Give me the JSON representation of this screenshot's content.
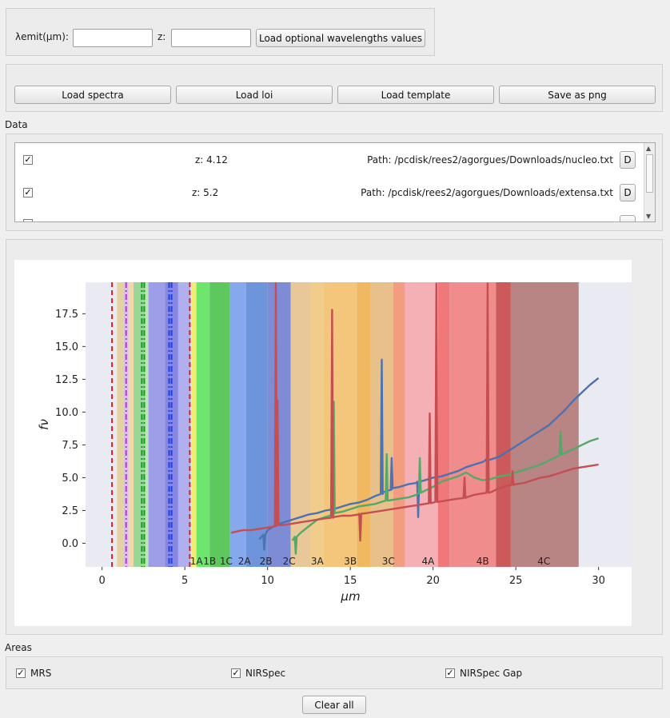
{
  "params": {
    "lambda_label": "λemit(µm):",
    "lambda_value": "",
    "z_label": "z:",
    "z_value": "",
    "load_optional_label": "Load optional wavelengths values"
  },
  "toolbar": {
    "load_spectra": "Load spectra",
    "load_loi": "Load loi",
    "load_template": "Load template",
    "save_png": "Save as png"
  },
  "data_section": {
    "title": "Data",
    "rows": [
      {
        "checked": true,
        "z": "z: 4.12",
        "path": "Path: /pcdisk/rees2/agorgues/Downloads/nucleo.txt",
        "button": "D"
      },
      {
        "checked": true,
        "z": "z: 5.2",
        "path": "Path: /pcdisk/rees2/agorgues/Downloads/extensa.txt",
        "button": "D"
      }
    ]
  },
  "areas": {
    "title": "Areas",
    "items": [
      {
        "label": "MRS",
        "checked": true
      },
      {
        "label": "NIRSpec",
        "checked": true
      },
      {
        "label": "NIRSpec Gap",
        "checked": true
      }
    ]
  },
  "clear_all": "Clear all",
  "chart_data": {
    "type": "line",
    "xlabel": "μm",
    "ylabel": "fν",
    "xlim": [
      -1,
      32
    ],
    "ylim": [
      -1.8,
      19.9
    ],
    "xticks": [
      0,
      5,
      10,
      15,
      20,
      25,
      30
    ],
    "yticks": [
      0.0,
      2.5,
      5.0,
      7.5,
      10.0,
      12.5,
      15.0,
      17.5
    ],
    "grid": false,
    "band_labels": [
      {
        "label": "1A",
        "x": 5.7
      },
      {
        "label": "1B",
        "x": 6.5
      },
      {
        "label": "1C",
        "x": 7.5
      },
      {
        "label": "2A",
        "x": 8.6
      },
      {
        "label": "2B",
        "x": 9.9
      },
      {
        "label": "2C",
        "x": 11.3
      },
      {
        "label": "3A",
        "x": 13.0
      },
      {
        "label": "3B",
        "x": 15.0
      },
      {
        "label": "3C",
        "x": 17.3
      },
      {
        "label": "4A",
        "x": 19.7
      },
      {
        "label": "4B",
        "x": 23.0
      },
      {
        "label": "4C",
        "x": 26.7
      }
    ],
    "bands": [
      {
        "x0": 0.9,
        "x1": 1.3,
        "color": "#e4d3a0"
      },
      {
        "x0": 1.3,
        "x1": 1.6,
        "color": "#d6c2e6"
      },
      {
        "x0": 1.6,
        "x1": 1.9,
        "color": "#f1d8a8"
      },
      {
        "x0": 1.9,
        "x1": 2.6,
        "color": "#9ad69a"
      },
      {
        "x0": 2.6,
        "x1": 2.8,
        "color": "#bce4bc"
      },
      {
        "x0": 2.8,
        "x1": 3.8,
        "color": "#9e9ee8"
      },
      {
        "x0": 3.8,
        "x1": 4.6,
        "color": "#8686e3"
      },
      {
        "x0": 4.6,
        "x1": 5.35,
        "color": "#b0b0ee"
      },
      {
        "x0": 5.4,
        "x1": 5.7,
        "color": "#f0ee70"
      },
      {
        "x0": 5.7,
        "x1": 6.5,
        "color": "#6ee66e"
      },
      {
        "x0": 6.5,
        "x1": 7.7,
        "color": "#5ec85e"
      },
      {
        "x0": 7.7,
        "x1": 8.7,
        "color": "#86a8ec"
      },
      {
        "x0": 8.7,
        "x1": 10.0,
        "color": "#6e94dc"
      },
      {
        "x0": 10.0,
        "x1": 11.4,
        "color": "#7e8cd6"
      },
      {
        "x0": 11.4,
        "x1": 12.6,
        "color": "#e8c898"
      },
      {
        "x0": 12.6,
        "x1": 13.4,
        "color": "#f2cc8a"
      },
      {
        "x0": 13.4,
        "x1": 15.4,
        "color": "#f4c67c"
      },
      {
        "x0": 15.4,
        "x1": 16.2,
        "color": "#f0b860"
      },
      {
        "x0": 16.2,
        "x1": 17.6,
        "color": "#e8c08a"
      },
      {
        "x0": 17.6,
        "x1": 18.3,
        "color": "#f29c80"
      },
      {
        "x0": 18.3,
        "x1": 20.3,
        "color": "#f4b0b4"
      },
      {
        "x0": 20.3,
        "x1": 21.0,
        "color": "#f07878"
      },
      {
        "x0": 21.0,
        "x1": 23.8,
        "color": "#f08c8c"
      },
      {
        "x0": 23.8,
        "x1": 24.7,
        "color": "#cc5a5a"
      },
      {
        "x0": 24.7,
        "x1": 28.8,
        "color": "#b98484"
      }
    ],
    "vlines": [
      {
        "x": 0.6,
        "color": "#d42020",
        "style": "dashed"
      },
      {
        "x": 1.45,
        "color": "#c030e0",
        "style": "dashdot"
      },
      {
        "x": 2.4,
        "color": "#10a010",
        "style": "dashdot"
      },
      {
        "x": 2.55,
        "color": "#10a010",
        "style": "dashdot"
      },
      {
        "x": 4.05,
        "color": "#2040e0",
        "style": "dashdot"
      },
      {
        "x": 4.2,
        "color": "#2040e0",
        "style": "dashdot"
      },
      {
        "x": 5.3,
        "color": "#d42020",
        "style": "dashed"
      }
    ],
    "series": [
      {
        "color": "#4c72b0",
        "x": [
          9.5,
          10.0,
          10.5,
          11.0,
          11.5,
          12.0,
          12.5,
          13.0,
          13.5,
          14.0,
          14.5,
          15.0,
          15.5,
          16.0,
          16.5,
          17.0,
          17.5,
          18.0,
          18.5,
          19.0,
          19.5,
          20.0,
          20.5,
          21.0,
          21.5,
          22.0,
          22.5,
          23.0,
          23.5,
          24.0,
          24.5,
          25.0,
          25.5,
          26.0,
          26.5,
          27.0,
          27.5,
          28.0,
          28.5,
          29.0,
          29.5,
          30.0
        ],
        "y": [
          0.3,
          1.0,
          1.4,
          1.6,
          1.8,
          2.0,
          2.2,
          2.3,
          2.5,
          2.6,
          2.8,
          3.0,
          3.1,
          3.3,
          3.6,
          3.9,
          4.1,
          4.3,
          4.5,
          4.6,
          4.8,
          5.0,
          5.1,
          5.3,
          5.5,
          5.8,
          6.0,
          6.2,
          6.4,
          6.6,
          7.0,
          7.4,
          7.8,
          8.2,
          8.6,
          9.0,
          9.6,
          10.2,
          10.9,
          11.5,
          12.1,
          12.6
        ],
        "peaks": [
          {
            "x": 16.9,
            "y": 14.0
          },
          {
            "x": 17.5,
            "y": 6.5
          },
          {
            "x": 23.2,
            "y": 6.4
          },
          {
            "x": 9.8,
            "y": -0.5
          },
          {
            "x": 19.1,
            "y": 2.0
          }
        ]
      },
      {
        "color": "#55a868",
        "x": [
          11.5,
          12.0,
          12.5,
          13.0,
          13.5,
          14.0,
          14.5,
          15.0,
          15.5,
          16.0,
          16.5,
          17.0,
          17.5,
          18.0,
          18.5,
          19.0,
          19.5,
          20.0,
          20.5,
          21.0,
          21.5,
          22.0,
          22.5,
          23.0,
          23.5,
          24.0,
          24.5,
          25.0,
          25.5,
          26.0,
          26.5,
          27.0,
          27.5,
          28.0,
          28.5,
          29.0,
          29.5,
          30.0
        ],
        "y": [
          0.2,
          0.8,
          1.3,
          1.8,
          2.0,
          2.2,
          2.4,
          2.6,
          2.8,
          2.9,
          3.0,
          3.2,
          3.3,
          3.4,
          3.5,
          3.7,
          4.0,
          4.3,
          4.7,
          4.9,
          5.1,
          5.4,
          5.0,
          4.8,
          4.9,
          5.1,
          5.2,
          5.4,
          5.6,
          5.8,
          6.0,
          6.3,
          6.6,
          6.9,
          7.2,
          7.5,
          7.8,
          8.0
        ],
        "peaks": [
          {
            "x": 14.0,
            "y": 10.8
          },
          {
            "x": 17.2,
            "y": 6.8
          },
          {
            "x": 19.2,
            "y": 6.5
          },
          {
            "x": 27.7,
            "y": 8.5
          },
          {
            "x": 11.7,
            "y": -0.8
          },
          {
            "x": 23.3,
            "y": 8.2
          }
        ]
      },
      {
        "color": "#c44e52",
        "x": [
          7.8,
          8.5,
          9.0,
          9.5,
          10.0,
          10.5,
          11.0,
          11.5,
          12.0,
          12.5,
          13.0,
          13.5,
          14.0,
          14.5,
          15.0,
          15.5,
          16.0,
          16.5,
          17.0,
          17.5,
          18.0,
          18.5,
          19.0,
          19.5,
          20.0,
          20.5,
          21.0,
          21.5,
          22.0,
          22.5,
          23.0,
          23.5,
          24.0,
          24.5,
          25.0,
          25.5,
          26.0,
          26.5,
          27.0,
          27.5,
          28.0,
          28.5,
          29.0,
          29.5,
          30.0
        ],
        "y": [
          0.8,
          1.0,
          1.0,
          1.1,
          1.2,
          1.3,
          1.4,
          1.5,
          1.6,
          1.7,
          1.8,
          1.9,
          2.0,
          2.1,
          2.1,
          2.2,
          2.3,
          2.4,
          2.5,
          2.6,
          2.7,
          2.8,
          2.9,
          3.0,
          3.1,
          3.2,
          3.3,
          3.4,
          3.5,
          3.7,
          3.8,
          3.9,
          4.2,
          4.4,
          4.5,
          4.6,
          4.8,
          5.0,
          5.1,
          5.3,
          5.5,
          5.7,
          5.8,
          5.9,
          6.0
        ],
        "peaks": [
          {
            "x": 10.5,
            "y": 19.8
          },
          {
            "x": 10.6,
            "y": 10.9
          },
          {
            "x": 13.9,
            "y": 17.8
          },
          {
            "x": 19.8,
            "y": 9.9
          },
          {
            "x": 20.2,
            "y": 19.8
          },
          {
            "x": 23.3,
            "y": 19.8
          },
          {
            "x": 24.8,
            "y": 5.5
          },
          {
            "x": 15.6,
            "y": 0.2
          },
          {
            "x": 21.9,
            "y": 5.0
          }
        ]
      }
    ]
  }
}
